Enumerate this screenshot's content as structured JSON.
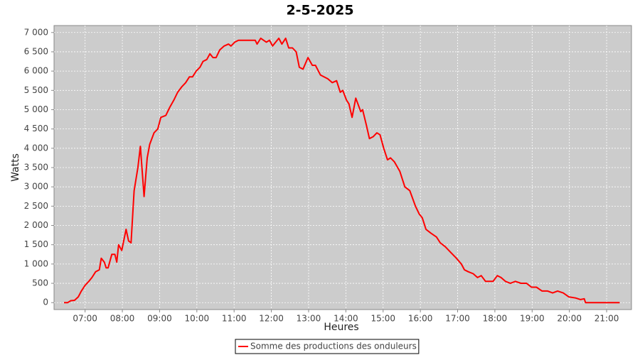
{
  "chart_data": {
    "type": "line",
    "title": "2-5-2025",
    "xlabel": "Heures",
    "ylabel": "Watts",
    "x": [
      "06:26",
      "06:32",
      "06:37",
      "06:43",
      "06:49",
      "06:54",
      "07:00",
      "07:06",
      "07:11",
      "07:17",
      "07:23",
      "07:26",
      "07:31",
      "07:34",
      "07:37",
      "07:43",
      "07:48",
      "07:51",
      "07:54",
      "07:59",
      "08:06",
      "08:10",
      "08:14",
      "08:19",
      "08:25",
      "08:29",
      "08:35",
      "08:40",
      "08:44",
      "08:51",
      "08:57",
      "09:02",
      "09:10",
      "09:16",
      "09:23",
      "09:29",
      "09:36",
      "09:42",
      "09:48",
      "09:53",
      "09:59",
      "10:05",
      "10:10",
      "10:16",
      "10:21",
      "10:26",
      "10:31",
      "10:37",
      "10:44",
      "10:51",
      "10:55",
      "11:01",
      "11:07",
      "11:20",
      "11:34",
      "11:37",
      "11:43",
      "11:52",
      "11:57",
      "12:02",
      "12:12",
      "12:17",
      "12:23",
      "12:28",
      "12:34",
      "12:40",
      "12:45",
      "12:51",
      "12:59",
      "13:06",
      "13:11",
      "13:19",
      "13:31",
      "13:38",
      "13:45",
      "13:51",
      "13:55",
      "14:01",
      "14:05",
      "14:10",
      "14:16",
      "14:24",
      "14:27",
      "14:33",
      "14:38",
      "14:44",
      "14:50",
      "14:55",
      "15:01",
      "15:07",
      "15:12",
      "15:18",
      "15:27",
      "15:35",
      "15:43",
      "15:52",
      "15:58",
      "16:03",
      "16:09",
      "16:17",
      "16:26",
      "16:32",
      "16:40",
      "16:49",
      "16:58",
      "17:06",
      "17:11",
      "17:17",
      "17:25",
      "17:32",
      "17:38",
      "17:45",
      "17:57",
      "18:04",
      "18:10",
      "18:17",
      "18:25",
      "18:33",
      "18:42",
      "18:51",
      "18:59",
      "19:07",
      "19:16",
      "19:25",
      "19:33",
      "19:41",
      "19:50",
      "19:59",
      "20:10",
      "20:18",
      "20:24",
      "20:26",
      "20:46",
      "21:21"
    ],
    "series": [
      {
        "name": "Somme des productions des onduleurs",
        "color": "#ff0000",
        "values": [
          0,
          0,
          50,
          60,
          150,
          300,
          450,
          550,
          650,
          800,
          850,
          1150,
          1050,
          900,
          900,
          1250,
          1250,
          1050,
          1500,
          1350,
          1900,
          1600,
          1550,
          2900,
          3500,
          4050,
          2750,
          3750,
          4100,
          4400,
          4500,
          4800,
          4850,
          5050,
          5250,
          5450,
          5600,
          5700,
          5850,
          5850,
          6000,
          6100,
          6250,
          6300,
          6450,
          6350,
          6350,
          6550,
          6650,
          6700,
          6650,
          6750,
          6800,
          6800,
          6800,
          6700,
          6850,
          6750,
          6800,
          6650,
          6850,
          6700,
          6850,
          6600,
          6600,
          6500,
          6100,
          6050,
          6350,
          6150,
          6150,
          5900,
          5800,
          5700,
          5750,
          5450,
          5500,
          5250,
          5150,
          4800,
          5300,
          4950,
          5000,
          4600,
          4250,
          4300,
          4400,
          4350,
          4000,
          3700,
          3750,
          3650,
          3400,
          3000,
          2900,
          2500,
          2300,
          2200,
          1900,
          1800,
          1700,
          1550,
          1450,
          1300,
          1150,
          1000,
          850,
          800,
          750,
          650,
          700,
          550,
          550,
          700,
          650,
          550,
          500,
          550,
          500,
          500,
          400,
          400,
          300,
          300,
          250,
          300,
          250,
          150,
          120,
          80,
          100,
          0,
          0,
          0
        ]
      }
    ],
    "xlim": [
      "06:10",
      "21:40"
    ],
    "xticks": [
      "07:00",
      "08:00",
      "09:00",
      "10:00",
      "11:00",
      "12:00",
      "13:00",
      "14:00",
      "15:00",
      "16:00",
      "17:00",
      "18:00",
      "19:00",
      "20:00",
      "21:00"
    ],
    "ylim": [
      -180,
      7180
    ],
    "yticks": [
      0,
      500,
      {
        "value": 1000,
        "label": "1 000"
      },
      {
        "value": 1500,
        "label": "1 500"
      },
      {
        "value": 2000,
        "label": "2 000"
      },
      {
        "value": 2500,
        "label": "2 500"
      },
      {
        "value": 3000,
        "label": "3 000"
      },
      {
        "value": 3500,
        "label": "3 500"
      },
      {
        "value": 4000,
        "label": "4 000"
      },
      {
        "value": 4500,
        "label": "4 500"
      },
      {
        "value": 5000,
        "label": "5 000"
      },
      {
        "value": 5500,
        "label": "5 500"
      },
      {
        "value": 6000,
        "label": "6 000"
      },
      {
        "value": 6500,
        "label": "6 500"
      },
      {
        "value": 7000,
        "label": "7 000"
      }
    ],
    "grid": true,
    "background": "#cccccc",
    "legend": "bottom"
  }
}
